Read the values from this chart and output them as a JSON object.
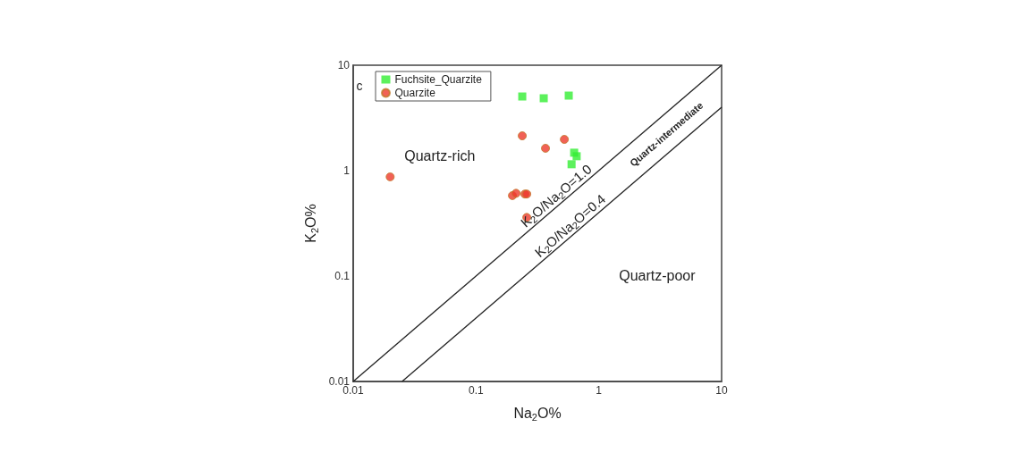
{
  "chart_data": {
    "type": "scatter",
    "xlabel": "Na$_{2}$O%",
    "ylabel": "K$_{2}$O%",
    "log": "xy",
    "xlim": [
      0.01,
      10
    ],
    "ylim": [
      0.01,
      10
    ],
    "xticks": [
      0.01,
      0.1,
      1,
      10
    ],
    "yticks": [
      0.01,
      0.1,
      1,
      10
    ],
    "grid": false,
    "legend": "top left",
    "series": [
      {
        "name": "Fuchsite_Quarzite",
        "color": "#33ee33",
        "marker": "square",
        "x": [
          0.238,
          0.356,
          0.569,
          0.63,
          0.66,
          0.6
        ],
        "values": [
          5.05,
          4.86,
          5.15,
          1.48,
          1.37,
          1.15
        ]
      },
      {
        "name": "Quarzite",
        "color": "#ee3a2c",
        "marker": "circle",
        "x": [
          0.238,
          0.368,
          0.524,
          0.02,
          0.198,
          0.212,
          0.25,
          0.259,
          0.259
        ],
        "values": [
          2.14,
          1.63,
          1.98,
          0.873,
          0.58,
          0.61,
          0.6,
          0.6,
          0.36
        ]
      },
      {
        "type": "line",
        "color": "#222222",
        "marker": "none",
        "line_style": "solid",
        "x": [
          0.01,
          10
        ],
        "values": [
          0.01,
          10
        ]
      },
      {
        "type": "line",
        "color": "#222222",
        "marker": "none",
        "line_style": "solid",
        "x": [
          0.025,
          10
        ],
        "values": [
          0.01,
          4
        ]
      }
    ],
    "annotations": [
      "c",
      "Quartz-rich",
      "Quartz-intermediate",
      "Quartz-poor",
      {
        "text": "K$_{2}$O/Na$_{2}$O=1.0",
        "x": 0.5,
        "y": 0.5
      },
      {
        "text": "K$_{2}$O/Na$_{2}$O=0.4",
        "x": 0.65,
        "y": 0.26
      }
    ]
  }
}
